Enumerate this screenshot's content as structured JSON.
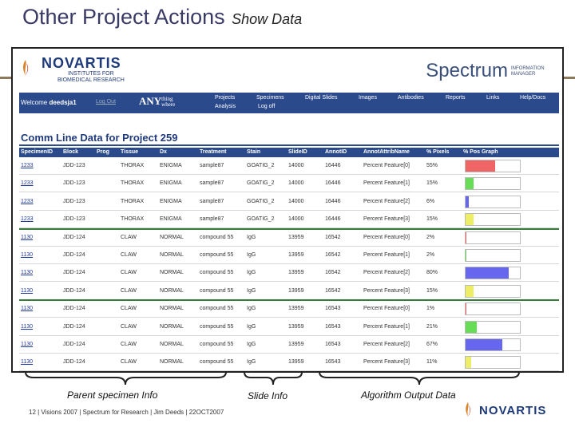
{
  "slide": {
    "title": "Other Project Actions",
    "subtitle": "Show Data"
  },
  "app": {
    "brand": "NOVARTIS",
    "brand_sub_1": "INSTITUTES FOR",
    "brand_sub_2": "BIOMEDICAL RESEARCH",
    "product": "Spectrum",
    "product_sub_1": "INFORMATION",
    "product_sub_2": "MANAGER",
    "welcome_prefix": "Welcome",
    "username": "deedsja1",
    "logout_link": "Log Out",
    "any_brand": "ANY",
    "any_small_1": "thing",
    "any_small_2": "where",
    "nav": {
      "projects": "Projects",
      "analysis": "Analysis",
      "specimens": "Specimens",
      "logoff": "Log off",
      "digital_slides": "Digital Slides",
      "images": "Images",
      "antibodies": "Antibodies",
      "reports": "Reports",
      "links": "Links",
      "help": "Help/Docs"
    }
  },
  "page_heading": "Comm Line Data for Project 259",
  "table": {
    "columns": [
      "SpecimenID",
      "Block",
      "Prog",
      "Tissue",
      "Dx",
      "Treatment",
      "Stain",
      "SlideID",
      "AnnotID",
      "AnnotAttribName",
      "% Pixels",
      "% Pos Graph"
    ],
    "rows": [
      {
        "specimen": "1233",
        "block": "JDD-123",
        "prog": "",
        "tissue": "THORAX",
        "dx": "ENIGMA",
        "treatment": "sample87",
        "stain": "GOATIG_2",
        "slide": "14000",
        "annot": "16446",
        "attr": "Percent Feature[0]",
        "pct": "55%",
        "fill": 0.55,
        "color": "#f06666"
      },
      {
        "specimen": "1233",
        "block": "JDD-123",
        "prog": "",
        "tissue": "THORAX",
        "dx": "ENIGMA",
        "treatment": "sample87",
        "stain": "GOATIG_2",
        "slide": "14000",
        "annot": "16446",
        "attr": "Percent Feature[1]",
        "pct": "15%",
        "fill": 0.15,
        "color": "#66dd55"
      },
      {
        "specimen": "1233",
        "block": "JDD-123",
        "prog": "",
        "tissue": "THORAX",
        "dx": "ENIGMA",
        "treatment": "sample87",
        "stain": "GOATIG_2",
        "slide": "14000",
        "annot": "16446",
        "attr": "Percent Feature[2]",
        "pct": "6%",
        "fill": 0.06,
        "color": "#6666ee"
      },
      {
        "specimen": "1233",
        "block": "JDD-123",
        "prog": "",
        "tissue": "THORAX",
        "dx": "ENIGMA",
        "treatment": "sample87",
        "stain": "GOATIG_2",
        "slide": "14000",
        "annot": "16446",
        "attr": "Percent Feature[3]",
        "pct": "15%",
        "fill": 0.15,
        "color": "#eeee66"
      },
      {
        "specimen": "1130",
        "block": "JDD-124",
        "prog": "",
        "tissue": "CLAW",
        "dx": "NORMAL",
        "treatment": "compound 55",
        "stain": "IgG",
        "slide": "13959",
        "annot": "16542",
        "attr": "Percent Feature[0]",
        "pct": "2%",
        "fill": 0.02,
        "color": "#f06666"
      },
      {
        "specimen": "1130",
        "block": "JDD-124",
        "prog": "",
        "tissue": "CLAW",
        "dx": "NORMAL",
        "treatment": "compound 55",
        "stain": "IgG",
        "slide": "13959",
        "annot": "16542",
        "attr": "Percent Feature[1]",
        "pct": "2%",
        "fill": 0.02,
        "color": "#66dd55"
      },
      {
        "specimen": "1130",
        "block": "JDD-124",
        "prog": "",
        "tissue": "CLAW",
        "dx": "NORMAL",
        "treatment": "compound 55",
        "stain": "IgG",
        "slide": "13959",
        "annot": "16542",
        "attr": "Percent Feature[2]",
        "pct": "80%",
        "fill": 0.8,
        "color": "#6666ee"
      },
      {
        "specimen": "1130",
        "block": "JDD-124",
        "prog": "",
        "tissue": "CLAW",
        "dx": "NORMAL",
        "treatment": "compound 55",
        "stain": "IgG",
        "slide": "13959",
        "annot": "16542",
        "attr": "Percent Feature[3]",
        "pct": "15%",
        "fill": 0.15,
        "color": "#eeee66"
      },
      {
        "specimen": "1130",
        "block": "JDD-124",
        "prog": "",
        "tissue": "CLAW",
        "dx": "NORMAL",
        "treatment": "compound 55",
        "stain": "IgG",
        "slide": "13959",
        "annot": "16543",
        "attr": "Percent Feature[0]",
        "pct": "1%",
        "fill": 0.01,
        "color": "#f06666"
      },
      {
        "specimen": "1130",
        "block": "JDD-124",
        "prog": "",
        "tissue": "CLAW",
        "dx": "NORMAL",
        "treatment": "compound 55",
        "stain": "IgG",
        "slide": "13959",
        "annot": "16543",
        "attr": "Percent Feature[1]",
        "pct": "21%",
        "fill": 0.21,
        "color": "#66dd55"
      },
      {
        "specimen": "1130",
        "block": "JDD-124",
        "prog": "",
        "tissue": "CLAW",
        "dx": "NORMAL",
        "treatment": "compound 55",
        "stain": "IgG",
        "slide": "13959",
        "annot": "16543",
        "attr": "Percent Feature[2]",
        "pct": "67%",
        "fill": 0.67,
        "color": "#6666ee"
      },
      {
        "specimen": "1130",
        "block": "JDD-124",
        "prog": "",
        "tissue": "CLAW",
        "dx": "NORMAL",
        "treatment": "compound 55",
        "stain": "IgG",
        "slide": "13959",
        "annot": "16543",
        "attr": "Percent Feature[3]",
        "pct": "11%",
        "fill": 0.11,
        "color": "#eeee66"
      }
    ]
  },
  "annotations": {
    "parent": "Parent specimen Info",
    "slide": "Slide Info",
    "algorithm": "Algorithm Output Data"
  },
  "footer": {
    "text": "12 | Visions 2007 | Spectrum for Research | Jim Deeds | 22OCT2007",
    "brand": "NOVARTIS"
  },
  "colors": {
    "nav_blue": "#2b4a8c",
    "brand_blue": "#1f3a7a",
    "link_blue": "#1f3a9c",
    "group_separator": "#3a7a3a"
  }
}
